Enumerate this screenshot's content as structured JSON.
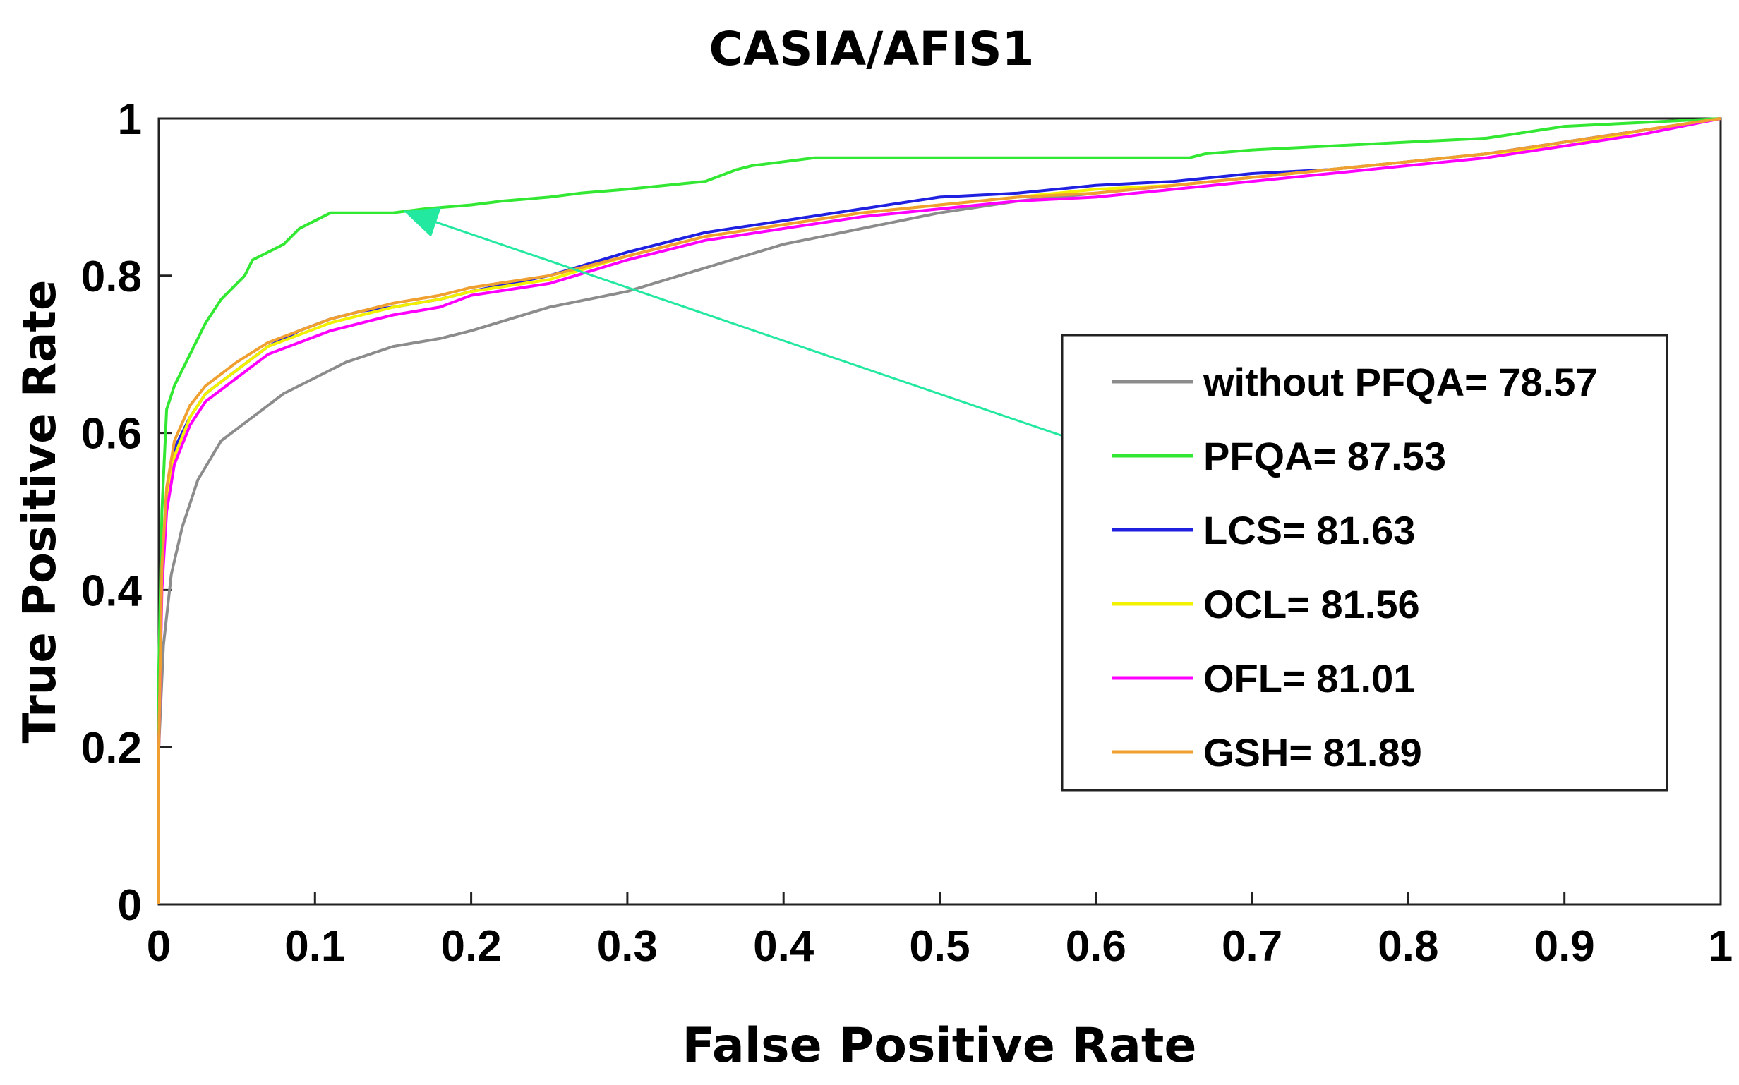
{
  "chart_data": {
    "type": "line",
    "title": "CASIA/AFIS1",
    "xlabel": "False Positive Rate",
    "ylabel": "True Positive Rate",
    "xlim": [
      0,
      1
    ],
    "ylim": [
      0,
      1
    ],
    "x_ticks": [
      "0",
      "0.1",
      "0.2",
      "0.3",
      "0.4",
      "0.5",
      "0.6",
      "0.7",
      "0.8",
      "0.9",
      "1"
    ],
    "y_ticks": [
      "0",
      "0.2",
      "0.4",
      "0.6",
      "0.8",
      "1"
    ],
    "legend_position": "center-right",
    "series": [
      {
        "name": "without PFQA",
        "label": "without PFQA= 78.57",
        "color": "#8c8c8c",
        "x": [
          0,
          0.003,
          0.008,
          0.015,
          0.025,
          0.04,
          0.06,
          0.08,
          0.1,
          0.12,
          0.15,
          0.18,
          0.2,
          0.25,
          0.3,
          0.35,
          0.4,
          0.45,
          0.5,
          0.55,
          0.6,
          0.65,
          0.7,
          0.75,
          0.8,
          0.85,
          0.9,
          0.95,
          1
        ],
        "y": [
          0.2,
          0.33,
          0.42,
          0.48,
          0.54,
          0.59,
          0.62,
          0.65,
          0.67,
          0.69,
          0.71,
          0.72,
          0.73,
          0.76,
          0.78,
          0.81,
          0.84,
          0.86,
          0.88,
          0.895,
          0.905,
          0.915,
          0.925,
          0.935,
          0.945,
          0.955,
          0.97,
          0.985,
          1.0
        ]
      },
      {
        "name": "PFQA",
        "label": "PFQA= 87.53",
        "color": "#33e833",
        "x": [
          0,
          0.002,
          0.005,
          0.01,
          0.02,
          0.03,
          0.04,
          0.055,
          0.06,
          0.07,
          0.08,
          0.09,
          0.1,
          0.11,
          0.13,
          0.15,
          0.17,
          0.2,
          0.22,
          0.25,
          0.27,
          0.3,
          0.35,
          0.37,
          0.38,
          0.4,
          0.42,
          0.5,
          0.6,
          0.66,
          0.67,
          0.7,
          0.75,
          0.8,
          0.85,
          0.9,
          0.95,
          1
        ],
        "y": [
          0.3,
          0.5,
          0.63,
          0.66,
          0.7,
          0.74,
          0.77,
          0.8,
          0.82,
          0.83,
          0.84,
          0.86,
          0.87,
          0.88,
          0.88,
          0.88,
          0.885,
          0.89,
          0.895,
          0.9,
          0.905,
          0.91,
          0.92,
          0.935,
          0.94,
          0.945,
          0.95,
          0.95,
          0.95,
          0.95,
          0.955,
          0.96,
          0.965,
          0.97,
          0.975,
          0.99,
          0.995,
          1.0
        ]
      },
      {
        "name": "LCS",
        "label": "LCS= 81.63",
        "color": "#2020e0",
        "x": [
          0,
          0.002,
          0.005,
          0.01,
          0.02,
          0.03,
          0.05,
          0.07,
          0.09,
          0.11,
          0.13,
          0.15,
          0.18,
          0.2,
          0.25,
          0.3,
          0.35,
          0.4,
          0.45,
          0.5,
          0.55,
          0.6,
          0.65,
          0.7,
          0.75,
          0.8,
          0.85,
          0.9,
          0.95,
          1
        ],
        "y": [
          0.2,
          0.42,
          0.52,
          0.58,
          0.62,
          0.65,
          0.68,
          0.71,
          0.73,
          0.745,
          0.755,
          0.76,
          0.77,
          0.78,
          0.8,
          0.83,
          0.855,
          0.87,
          0.885,
          0.9,
          0.905,
          0.915,
          0.92,
          0.93,
          0.935,
          0.945,
          0.955,
          0.97,
          0.985,
          1.0
        ]
      },
      {
        "name": "OCL",
        "label": "OCL= 81.56",
        "color": "#f2f200",
        "x": [
          0,
          0.002,
          0.005,
          0.01,
          0.02,
          0.03,
          0.05,
          0.07,
          0.09,
          0.11,
          0.13,
          0.15,
          0.18,
          0.2,
          0.25,
          0.3,
          0.35,
          0.4,
          0.45,
          0.5,
          0.55,
          0.6,
          0.65,
          0.7,
          0.75,
          0.8,
          0.85,
          0.9,
          0.95,
          1
        ],
        "y": [
          0.2,
          0.41,
          0.51,
          0.57,
          0.62,
          0.65,
          0.68,
          0.71,
          0.725,
          0.74,
          0.75,
          0.76,
          0.77,
          0.78,
          0.795,
          0.825,
          0.85,
          0.865,
          0.88,
          0.89,
          0.9,
          0.91,
          0.915,
          0.925,
          0.935,
          0.945,
          0.955,
          0.965,
          0.985,
          1.0
        ]
      },
      {
        "name": "OFL",
        "label": "OFL= 81.01",
        "color": "#ff00ff",
        "x": [
          0,
          0.002,
          0.005,
          0.01,
          0.02,
          0.03,
          0.05,
          0.07,
          0.09,
          0.11,
          0.13,
          0.15,
          0.18,
          0.2,
          0.25,
          0.3,
          0.35,
          0.4,
          0.45,
          0.5,
          0.55,
          0.6,
          0.65,
          0.7,
          0.75,
          0.8,
          0.85,
          0.9,
          0.95,
          1
        ],
        "y": [
          0.2,
          0.4,
          0.5,
          0.56,
          0.61,
          0.64,
          0.67,
          0.7,
          0.715,
          0.73,
          0.74,
          0.75,
          0.76,
          0.775,
          0.79,
          0.82,
          0.845,
          0.86,
          0.875,
          0.885,
          0.895,
          0.9,
          0.91,
          0.92,
          0.93,
          0.94,
          0.95,
          0.965,
          0.98,
          1.0
        ]
      },
      {
        "name": "GSH",
        "label": "GSH= 81.89",
        "color": "#f0a030",
        "x": [
          0,
          0.002,
          0.005,
          0.01,
          0.02,
          0.03,
          0.05,
          0.07,
          0.09,
          0.11,
          0.13,
          0.15,
          0.18,
          0.2,
          0.25,
          0.3,
          0.35,
          0.4,
          0.45,
          0.5,
          0.55,
          0.6,
          0.65,
          0.7,
          0.75,
          0.8,
          0.85,
          0.9,
          0.95,
          1
        ],
        "y": [
          0.2,
          0.43,
          0.53,
          0.59,
          0.635,
          0.66,
          0.69,
          0.715,
          0.73,
          0.745,
          0.755,
          0.765,
          0.775,
          0.785,
          0.8,
          0.825,
          0.85,
          0.865,
          0.88,
          0.89,
          0.9,
          0.905,
          0.915,
          0.925,
          0.935,
          0.945,
          0.955,
          0.97,
          0.985,
          1.0
        ]
      }
    ],
    "annotation": {
      "type": "arrow",
      "color": "#22e8a0",
      "from": [
        0.607,
        0.577
      ],
      "to": [
        0.157,
        0.882
      ]
    }
  }
}
